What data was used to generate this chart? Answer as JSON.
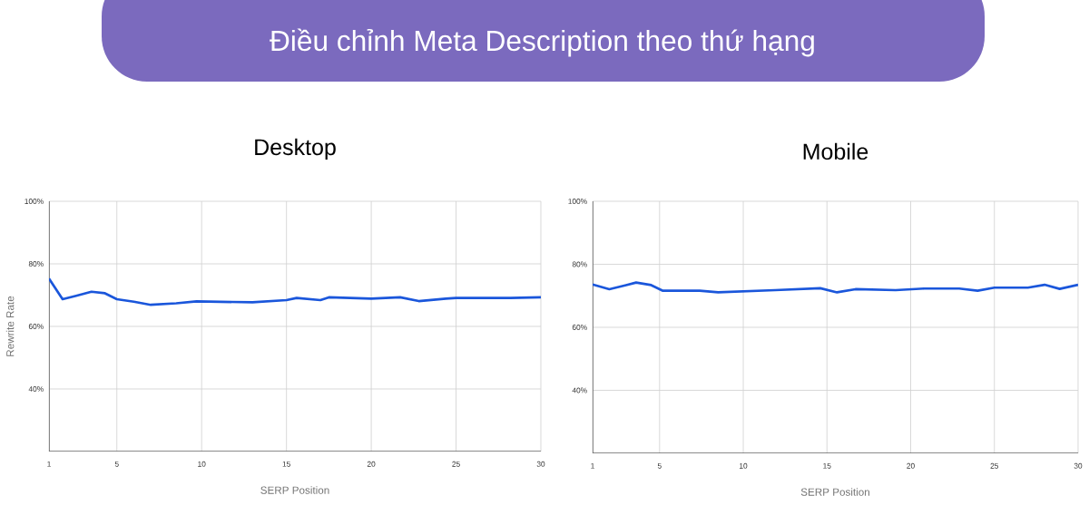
{
  "chart_data": [
    {
      "type": "line",
      "title": "Desktop",
      "annotations": [
        "Điều chỉnh Meta Description theo thứ hạng"
      ],
      "xlabel": "SERP Position",
      "ylabel": "Rewrite Rate",
      "xlim": [
        1,
        30
      ],
      "xticks": [
        1,
        5,
        10,
        15,
        20,
        25,
        30
      ],
      "ylim": [
        20,
        100
      ],
      "yticks": [
        {
          "value": 40,
          "label": "40%"
        },
        {
          "value": 60,
          "label": "60%"
        },
        {
          "value": 80,
          "label": "80%"
        },
        {
          "value": 100,
          "label": "100%"
        }
      ],
      "grid": true,
      "line_style": "solid",
      "x": [
        1,
        1.8,
        2.6,
        3.5,
        4.3,
        5,
        6,
        7,
        8.5,
        9.7,
        13,
        15,
        15.6,
        17,
        17.5,
        20,
        21.7,
        22.8,
        24.4,
        25,
        28.2,
        30
      ],
      "series": [
        {
          "color": "#1a56db",
          "values": [
            75.3,
            68.7,
            69.8,
            71.1,
            70.6,
            68.7,
            67.9,
            66.9,
            67.4,
            68,
            67.7,
            68.4,
            69.1,
            68.4,
            69.3,
            68.9,
            69.3,
            68.1,
            68.9,
            69.1,
            69.1,
            69.3
          ]
        }
      ]
    },
    {
      "type": "line",
      "title": "Mobile",
      "xlabel": "SERP Position",
      "xlim": [
        1,
        30
      ],
      "xticks": [
        1,
        5,
        10,
        15,
        20,
        25,
        30
      ],
      "ylim": [
        20,
        100
      ],
      "yticks": [
        {
          "value": 40,
          "label": "40%"
        },
        {
          "value": 60,
          "label": "60%"
        },
        {
          "value": 80,
          "label": "80%"
        },
        {
          "value": 100,
          "label": "100%"
        }
      ],
      "grid": true,
      "line_style": "solid",
      "x": [
        1,
        2,
        3,
        3.6,
        4.5,
        5.2,
        7.4,
        8.5,
        11.9,
        14.6,
        15.6,
        16.7,
        19.1,
        20.8,
        22.9,
        24,
        25,
        27,
        28,
        28.9,
        30
      ],
      "series": [
        {
          "color": "#1a56db",
          "values": [
            73.6,
            72.1,
            73.4,
            74.2,
            73.4,
            71.6,
            71.6,
            71.1,
            71.8,
            72.4,
            71.1,
            72.1,
            71.8,
            72.3,
            72.3,
            71.6,
            72.6,
            72.6,
            73.5,
            72.2,
            73.5
          ]
        }
      ]
    }
  ]
}
